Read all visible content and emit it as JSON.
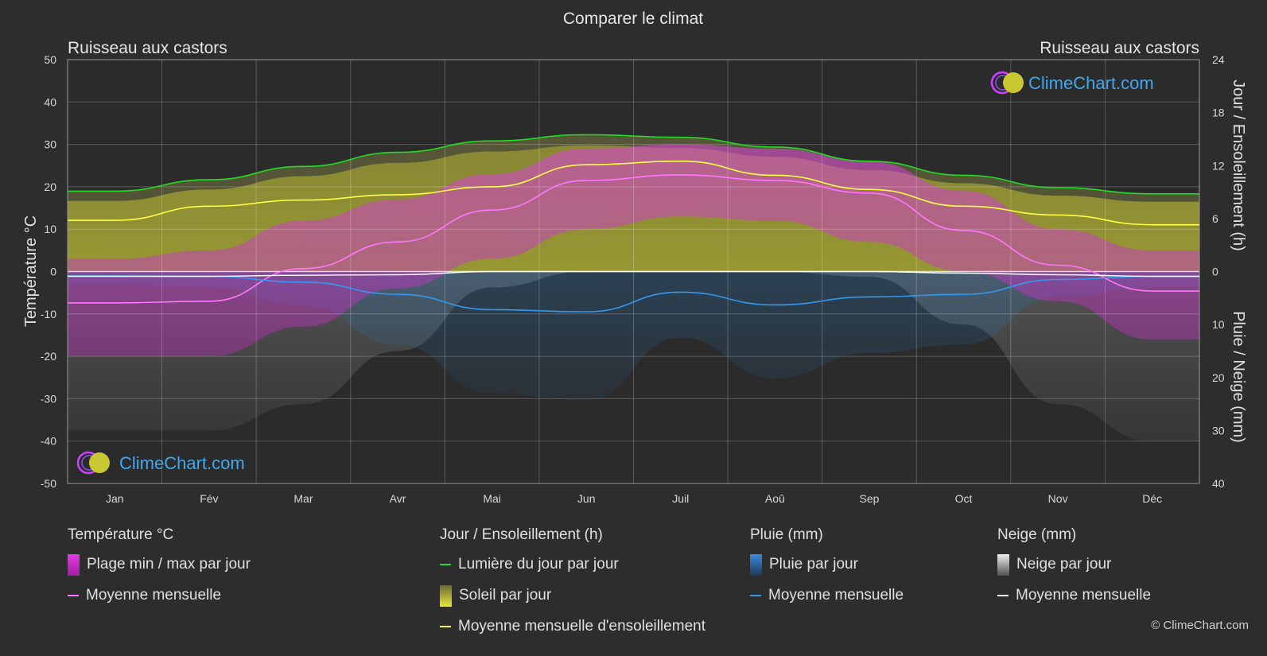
{
  "title": "Comparer le climat",
  "location_left": "Ruisseau aux castors",
  "location_right": "Ruisseau aux castors",
  "logo_text": "ClimeChart.com",
  "copyright": "© ClimeChart.com",
  "colors": {
    "background": "#2d2d2d",
    "temp_range": "#d83fd8",
    "temp_mean": "#ff77ff",
    "daylight": "#22dd22",
    "sunshine_fill": "#c8c832",
    "sunshine_mean": "#ffff44",
    "rain_fill": "#2a6ea8",
    "rain_mean": "#3399ee",
    "snow_fill": "#9a9a9a",
    "snow_mean": "#ffffff",
    "logo": "#3fa8f0"
  },
  "chart_data": {
    "type": "area",
    "title": "Comparer le climat",
    "categories": [
      "Jan",
      "Fév",
      "Mar",
      "Avr",
      "Mai",
      "Jun",
      "Juil",
      "Aoû",
      "Sep",
      "Oct",
      "Nov",
      "Déc"
    ],
    "axes": {
      "left": {
        "label": "Température °C",
        "min": -50,
        "max": 50,
        "ticks": [
          "50",
          "40",
          "30",
          "20",
          "10",
          "0",
          "-10",
          "-20",
          "-30",
          "-40",
          "-50"
        ]
      },
      "right_top": {
        "label": "Jour / Ensoleillement (h)",
        "min": 0,
        "max": 24,
        "ticks": [
          "24",
          "18",
          "12",
          "6",
          "0"
        ]
      },
      "right_bottom": {
        "label": "Pluie / Neige (mm)",
        "min": 0,
        "max": 40,
        "ticks": [
          "10",
          "20",
          "30",
          "40"
        ]
      }
    },
    "grid": true,
    "series": [
      {
        "name": "Moyenne mensuelle",
        "group": "Température °C",
        "unit": "°C",
        "values": [
          -7.4,
          -7.0,
          0.7,
          7.0,
          14.5,
          21.5,
          22.8,
          21.5,
          18.5,
          9.7,
          1.5,
          -4.6
        ]
      },
      {
        "name": "Plage min / max par jour",
        "group": "Température °C",
        "unit": "°C",
        "min": [
          -20,
          -20,
          -13,
          -4,
          3,
          10,
          13,
          12,
          7,
          0,
          -7,
          -16
        ],
        "max": [
          3,
          5,
          12,
          17,
          23,
          29,
          30,
          29,
          26,
          19,
          10,
          5
        ]
      },
      {
        "name": "Lumière du jour par jour",
        "group": "Jour / Ensoleillement (h)",
        "unit": "h",
        "values": [
          9.1,
          10.4,
          11.9,
          13.5,
          14.8,
          15.5,
          15.2,
          14.1,
          12.5,
          10.9,
          9.5,
          8.8
        ]
      },
      {
        "name": "Moyenne mensuelle d'ensoleillement",
        "group": "Jour / Ensoleillement (h)",
        "unit": "h",
        "values": [
          5.8,
          7.4,
          8.1,
          8.7,
          9.6,
          12.1,
          12.5,
          10.9,
          9.3,
          7.4,
          6.4,
          5.3
        ]
      },
      {
        "name": "Soleil par jour",
        "group": "Jour / Ensoleillement (h)",
        "unit": "h",
        "values": [
          8.0,
          9.3,
          10.8,
          12.3,
          13.6,
          14.3,
          14.0,
          13.0,
          11.5,
          10.0,
          8.6,
          7.9
        ]
      },
      {
        "name": "Moyenne mensuelle",
        "group": "Pluie (mm)",
        "unit": "mm",
        "values": [
          0.8,
          0.9,
          2.0,
          4.3,
          7.2,
          7.6,
          3.9,
          6.3,
          4.8,
          4.3,
          1.5,
          0.9
        ]
      },
      {
        "name": "Neige par jour",
        "group": "Neige (mm)",
        "unit": "mm",
        "values": [
          30,
          30,
          25,
          15,
          3,
          0,
          0,
          0,
          1,
          10,
          25,
          32
        ]
      },
      {
        "name": "Moyenne mensuelle",
        "group": "Neige (mm)",
        "unit": "mm",
        "values": [
          0.9,
          0.9,
          0.7,
          0.6,
          0.0,
          0.0,
          0.0,
          0.0,
          0.0,
          0.3,
          0.6,
          0.9
        ]
      }
    ]
  },
  "legend": {
    "temperature": {
      "heading": "Température °C",
      "range": "Plage min / max par jour",
      "mean": "Moyenne mensuelle"
    },
    "sun": {
      "heading": "Jour / Ensoleillement (h)",
      "daylight": "Lumière du jour par jour",
      "sunshine": "Soleil par jour",
      "sunshine_mean": "Moyenne mensuelle d'ensoleillement"
    },
    "rain": {
      "heading": "Pluie (mm)",
      "daily": "Pluie par jour",
      "mean": "Moyenne mensuelle"
    },
    "snow": {
      "heading": "Neige (mm)",
      "daily": "Neige par jour",
      "mean": "Moyenne mensuelle"
    }
  }
}
